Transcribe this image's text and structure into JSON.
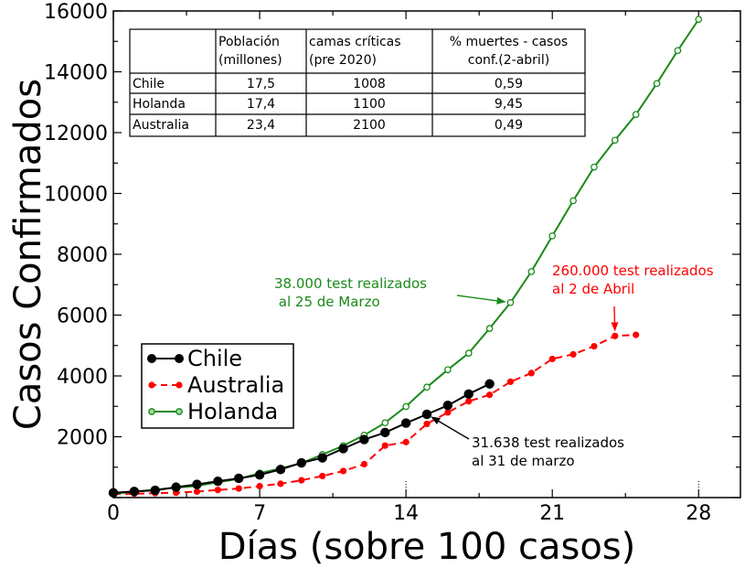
{
  "chart_data": {
    "type": "line",
    "xlabel": "Días (sobre 100 casos)",
    "ylabel": "Casos Confirmados",
    "xlim": [
      0,
      30
    ],
    "ylim": [
      0,
      16000
    ],
    "xticks": [
      0,
      7,
      14,
      21,
      28
    ],
    "yticks": [
      2000,
      4000,
      6000,
      8000,
      10000,
      12000,
      14000,
      16000
    ],
    "legend_position": "lower-left",
    "series": [
      {
        "name": "Chile",
        "color": "#000000",
        "style": "solid",
        "marker": "filled-circle",
        "x": [
          0,
          1,
          2,
          3,
          4,
          5,
          6,
          7,
          8,
          9,
          10,
          11,
          12,
          13,
          14,
          15,
          16,
          17,
          18
        ],
        "y": [
          155,
          201,
          238,
          342,
          434,
          537,
          632,
          746,
          922,
          1142,
          1306,
          1610,
          1909,
          2139,
          2449,
          2738,
          3031,
          3404,
          3737
        ]
      },
      {
        "name": "Australia",
        "color": "#ff0000",
        "style": "dashed",
        "marker": "filled-circle",
        "x": [
          0,
          1,
          2,
          3,
          4,
          5,
          6,
          7,
          8,
          9,
          10,
          11,
          12,
          13,
          14,
          15,
          16,
          17,
          18,
          19,
          20,
          21,
          22,
          23,
          24,
          25
        ],
        "y": [
          112,
          127,
          144,
          159,
          197,
          249,
          298,
          376,
          454,
          568,
          709,
          873,
          1098,
          1709,
          1823,
          2423,
          2799,
          3166,
          3378,
          3809,
          4093,
          4559,
          4709,
          4976,
          5314,
          5350
        ]
      },
      {
        "name": "Holanda",
        "color": "#1a8a1a",
        "style": "solid",
        "marker": "open-circle",
        "x": [
          0,
          1,
          2,
          3,
          4,
          5,
          6,
          7,
          8,
          9,
          10,
          11,
          12,
          13,
          14,
          15,
          16,
          17,
          18,
          19,
          20,
          21,
          22,
          23,
          24,
          25,
          26,
          27,
          28
        ],
        "y": [
          128,
          188,
          265,
          321,
          382,
          503,
          614,
          804,
          959,
          1135,
          1413,
          1705,
          2051,
          2460,
          2994,
          3631,
          4204,
          4749,
          5560,
          6412,
          7431,
          8603,
          9762,
          10866,
          11750,
          12595,
          13614,
          14697,
          15723
        ]
      }
    ],
    "annotations": [
      {
        "text_lines": [
          "38.000 test realizados",
          " al 25 de Marzo"
        ],
        "color": "#1a8a1a",
        "target": {
          "x": 19,
          "y": 6412
        }
      },
      {
        "text_lines": [
          "260.000 test realizados",
          "al 2 de Abril"
        ],
        "color": "#ff0000",
        "target": {
          "x": 24,
          "y": 5314
        }
      },
      {
        "text_lines": [
          "31.638 test realizados",
          "al 31 de marzo"
        ],
        "color": "#000000",
        "target": {
          "x": 15,
          "y": 2738
        }
      }
    ],
    "table": {
      "headers": [
        [
          "",
          ""
        ],
        [
          "Población",
          "(millones)"
        ],
        [
          "camas críticas",
          "(pre 2020)"
        ],
        [
          "% muertes - casos",
          "conf.(2-abril)"
        ]
      ],
      "rows": [
        [
          "Chile",
          "17,5",
          "1008",
          "0,59"
        ],
        [
          "Holanda",
          "17,4",
          "1100",
          "9,45"
        ],
        [
          "Australia",
          "23,4",
          "2100",
          "0,49"
        ]
      ]
    }
  }
}
